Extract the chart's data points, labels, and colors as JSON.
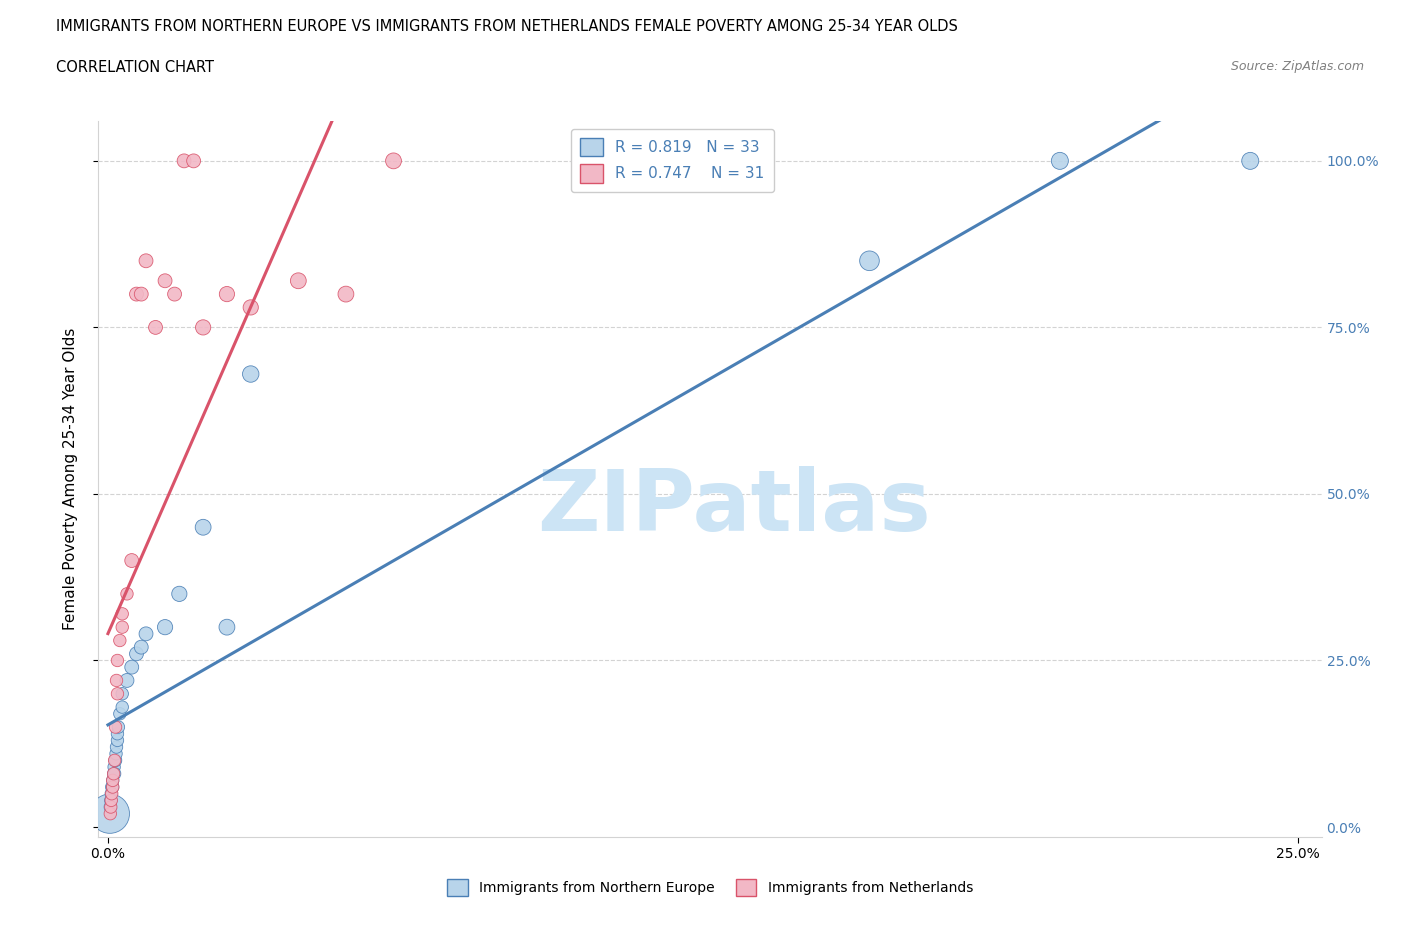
{
  "title_line1": "IMMIGRANTS FROM NORTHERN EUROPE VS IMMIGRANTS FROM NETHERLANDS FEMALE POVERTY AMONG 25-34 YEAR OLDS",
  "title_line2": "CORRELATION CHART",
  "source": "Source: ZipAtlas.com",
  "ylabel": "Female Poverty Among 25-34 Year Olds",
  "blue_label": "Immigrants from Northern Europe",
  "pink_label": "Immigrants from Netherlands",
  "blue_R": 0.819,
  "blue_N": 33,
  "pink_R": 0.747,
  "pink_N": 31,
  "blue_color": "#b8d4ea",
  "pink_color": "#f2b8c6",
  "blue_line_color": "#4a7fb5",
  "pink_line_color": "#d9536a",
  "watermark_color": "#cce4f5",
  "blue_x": [
    0.0004,
    0.0005,
    0.0006,
    0.0007,
    0.0008,
    0.001,
    0.001,
    0.0012,
    0.0013,
    0.0014,
    0.0015,
    0.0016,
    0.0017,
    0.0018,
    0.002,
    0.002,
    0.0022,
    0.0025,
    0.003,
    0.003,
    0.004,
    0.005,
    0.006,
    0.007,
    0.008,
    0.012,
    0.015,
    0.02,
    0.025,
    0.03,
    0.16,
    0.2,
    0.24
  ],
  "blue_y": [
    0.02,
    0.03,
    0.04,
    0.05,
    0.06,
    0.06,
    0.07,
    0.08,
    0.09,
    0.08,
    0.1,
    0.1,
    0.11,
    0.12,
    0.13,
    0.14,
    0.15,
    0.17,
    0.18,
    0.2,
    0.22,
    0.24,
    0.26,
    0.27,
    0.29,
    0.3,
    0.35,
    0.45,
    0.3,
    0.68,
    0.85,
    1.0,
    1.0
  ],
  "blue_sizes": [
    800,
    80,
    80,
    80,
    80,
    80,
    80,
    80,
    80,
    80,
    80,
    80,
    80,
    80,
    80,
    80,
    80,
    80,
    80,
    80,
    100,
    100,
    100,
    100,
    100,
    120,
    120,
    130,
    130,
    140,
    200,
    150,
    150
  ],
  "pink_x": [
    0.0005,
    0.0006,
    0.0007,
    0.0008,
    0.001,
    0.001,
    0.0012,
    0.0014,
    0.0016,
    0.0018,
    0.002,
    0.002,
    0.0025,
    0.003,
    0.003,
    0.004,
    0.005,
    0.006,
    0.007,
    0.008,
    0.01,
    0.012,
    0.014,
    0.016,
    0.018,
    0.02,
    0.025,
    0.03,
    0.04,
    0.05,
    0.06
  ],
  "pink_y": [
    0.02,
    0.03,
    0.04,
    0.05,
    0.06,
    0.07,
    0.08,
    0.1,
    0.15,
    0.22,
    0.2,
    0.25,
    0.28,
    0.3,
    0.32,
    0.35,
    0.4,
    0.8,
    0.8,
    0.85,
    0.75,
    0.82,
    0.8,
    1.0,
    1.0,
    0.75,
    0.8,
    0.78,
    0.82,
    0.8,
    1.0
  ],
  "pink_sizes": [
    80,
    80,
    80,
    80,
    80,
    80,
    80,
    80,
    80,
    80,
    80,
    80,
    80,
    80,
    80,
    80,
    100,
    100,
    100,
    100,
    100,
    100,
    100,
    100,
    100,
    120,
    120,
    120,
    130,
    130,
    130
  ],
  "xtick_positions": [
    0.0,
    0.25
  ],
  "xtick_labels": [
    "0.0%",
    "25.0%"
  ],
  "ytick_positions": [
    0.0,
    0.25,
    0.5,
    0.75,
    1.0
  ],
  "ytick_labels": [
    "0.0%",
    "25.0%",
    "50.0%",
    "75.0%",
    "100.0%"
  ]
}
